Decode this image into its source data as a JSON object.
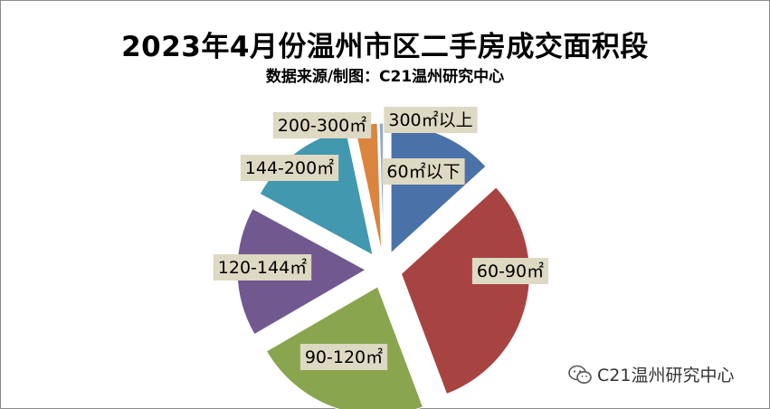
{
  "chart_data": {
    "type": "pie",
    "title": "2023年4月份温州市区二手房成交面积段",
    "subtitle": "数据来源/制图：C21温州研究中心",
    "exploded": true,
    "label_style": "boxed-category-labels",
    "slices": [
      {
        "label": "60㎡以下",
        "value": 13.0,
        "color": "#4a72a9"
      },
      {
        "label": "60-90㎡",
        "value": 30.5,
        "color": "#a74442"
      },
      {
        "label": "90-120㎡",
        "value": 22.0,
        "color": "#89a54e"
      },
      {
        "label": "120-144㎡",
        "value": 16.0,
        "color": "#71588f"
      },
      {
        "label": "144-200㎡",
        "value": 13.5,
        "color": "#4198af"
      },
      {
        "label": "200-300㎡",
        "value": 2.8,
        "color": "#db843d"
      },
      {
        "label": "300㎡以上",
        "value": 0.5,
        "color": "#93a9cf"
      }
    ],
    "label_box_color": "#ddd9c3"
  },
  "watermark": {
    "text": "C21温州研究中心",
    "icon": "wechat-icon"
  }
}
